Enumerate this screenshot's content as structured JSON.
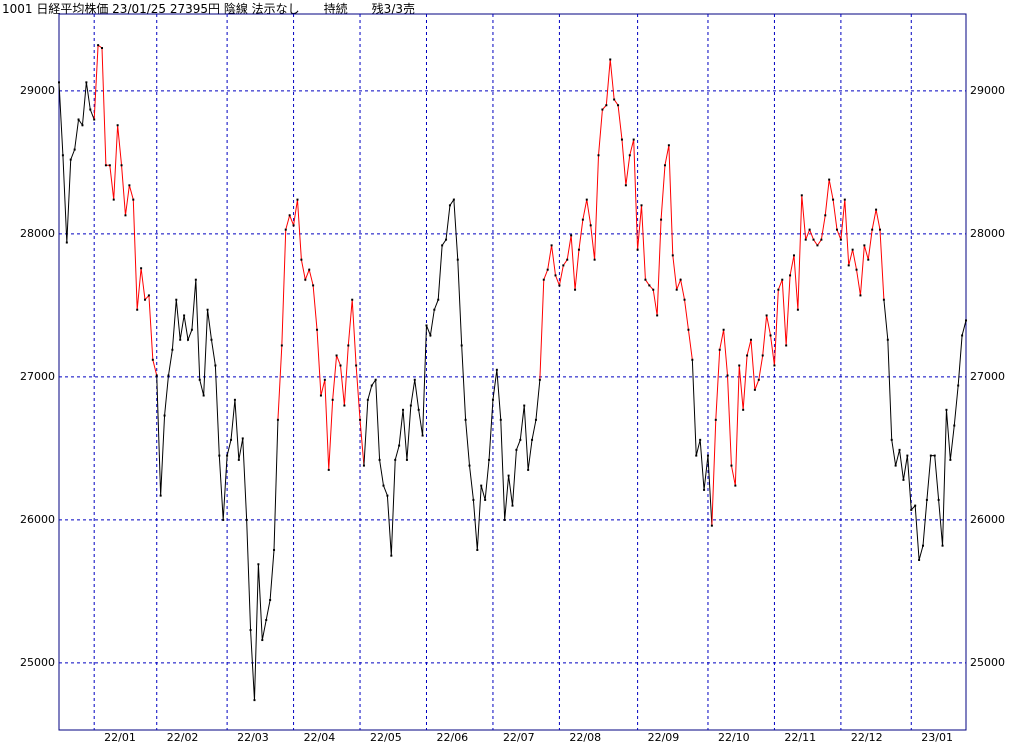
{
  "chart_data": {
    "type": "line",
    "title": "1001 日経平均株価 23/01/25 27395円 陰線 法示なし　　持続　　残3/3売",
    "categories": [
      null,
      null,
      null,
      null,
      null,
      null,
      null,
      null,
      null,
      "22/01",
      null,
      null,
      null,
      null,
      null,
      null,
      null,
      null,
      null,
      null,
      null,
      null,
      null,
      null,
      null,
      "22/02",
      null,
      null,
      null,
      null,
      null,
      null,
      null,
      null,
      null,
      null,
      null,
      null,
      null,
      null,
      null,
      null,
      null,
      "22/03",
      null,
      null,
      null,
      null,
      null,
      null,
      null,
      null,
      null,
      null,
      null,
      null,
      null,
      null,
      null,
      null,
      "22/04",
      null,
      null,
      null,
      null,
      null,
      null,
      null,
      null,
      null,
      null,
      null,
      null,
      null,
      null,
      null,
      null,
      "22/05",
      null,
      null,
      null,
      null,
      null,
      null,
      null,
      null,
      null,
      null,
      null,
      null,
      null,
      null,
      null,
      null,
      "22/06",
      null,
      null,
      null,
      null,
      null,
      null,
      null,
      null,
      null,
      null,
      null,
      null,
      null,
      null,
      null,
      null,
      "22/07",
      null,
      null,
      null,
      null,
      null,
      null,
      null,
      null,
      null,
      null,
      null,
      null,
      null,
      null,
      null,
      null,
      "22/08",
      null,
      null,
      null,
      null,
      null,
      null,
      null,
      null,
      null,
      null,
      null,
      null,
      null,
      null,
      null,
      null,
      null,
      null,
      null,
      "22/09",
      null,
      null,
      null,
      null,
      null,
      null,
      null,
      null,
      null,
      null,
      null,
      null,
      null,
      null,
      null,
      null,
      null,
      "22/10",
      null,
      null,
      null,
      null,
      null,
      null,
      null,
      null,
      null,
      null,
      null,
      null,
      null,
      null,
      null,
      null,
      "22/11",
      null,
      null,
      null,
      null,
      null,
      null,
      null,
      null,
      null,
      null,
      null,
      null,
      null,
      null,
      null,
      null,
      "22/12",
      null,
      null,
      null,
      null,
      null,
      null,
      null,
      null,
      null,
      null,
      null,
      null,
      null,
      null,
      null,
      null,
      null,
      "23/01",
      null,
      null,
      null,
      null,
      null,
      null,
      null,
      null,
      null,
      null,
      null,
      null,
      null,
      null
    ],
    "values": [
      29060,
      28550,
      27940,
      28520,
      28590,
      28800,
      28760,
      29060,
      28870,
      28800,
      29320,
      29300,
      28480,
      28480,
      28240,
      28760,
      28480,
      28130,
      28340,
      28240,
      27470,
      27760,
      27540,
      27570,
      27120,
      27010,
      26170,
      26730,
      27010,
      27190,
      27540,
      27260,
      27430,
      27260,
      27330,
      27680,
      26980,
      26870,
      27470,
      27260,
      27080,
      26450,
      26000,
      26450,
      26560,
      26840,
      26420,
      26570,
      26000,
      25230,
      24740,
      25690,
      25160,
      25300,
      25440,
      25790,
      26700,
      27220,
      28030,
      28130,
      28060,
      28240,
      27820,
      27680,
      27750,
      27640,
      27330,
      26870,
      26980,
      26350,
      26840,
      27150,
      27080,
      26800,
      27220,
      27540,
      27080,
      26700,
      26380,
      26840,
      26940,
      26980,
      26420,
      26240,
      26170,
      25750,
      26420,
      26520,
      26770,
      26420,
      26800,
      26980,
      26770,
      26590,
      27360,
      27290,
      27470,
      27540,
      27920,
      27960,
      28200,
      28240,
      27820,
      27220,
      26700,
      26380,
      26140,
      25790,
      26240,
      26140,
      26420,
      26840,
      27050,
      26700,
      26000,
      26310,
      26100,
      26490,
      26560,
      26800,
      26350,
      26560,
      26700,
      26980,
      27680,
      27750,
      27920,
      27710,
      27640,
      27780,
      27820,
      27990,
      27610,
      27890,
      28100,
      28240,
      28060,
      27820,
      28550,
      28870,
      28900,
      29220,
      28940,
      28900,
      28660,
      28340,
      28550,
      28660,
      27890,
      28200,
      27680,
      27640,
      27610,
      27430,
      28100,
      28480,
      28620,
      27850,
      27610,
      27680,
      27540,
      27330,
      27120,
      26450,
      26560,
      26210,
      26450,
      25960,
      26700,
      27190,
      27330,
      27010,
      26380,
      26240,
      27080,
      26770,
      27150,
      27260,
      26910,
      26980,
      27150,
      27430,
      27290,
      27080,
      27610,
      27680,
      27220,
      27710,
      27850,
      27470,
      28270,
      27960,
      28030,
      27960,
      27920,
      27960,
      28130,
      28380,
      28240,
      28030,
      27960,
      28240,
      27780,
      27890,
      27750,
      27570,
      27920,
      27820,
      28030,
      28170,
      28030,
      27540,
      27260,
      26560,
      26380,
      26490,
      26280,
      26450,
      26070,
      26100,
      25720,
      25820,
      26140,
      26450,
      26450,
      26140,
      25820,
      26770,
      26420,
      26660,
      26940,
      27290,
      27395
    ],
    "colors": [
      "#000",
      "#000",
      "#000",
      "#000",
      "#000",
      "#000",
      "#000",
      "#000",
      "#000",
      "#000",
      "#f00",
      "#f00",
      "#f00",
      "#f00",
      "#f00",
      "#f00",
      "#f00",
      "#f00",
      "#f00",
      "#f00",
      "#f00",
      "#f00",
      "#f00",
      "#f00",
      "#f00",
      "#f00",
      "#000",
      "#000",
      "#000",
      "#000",
      "#000",
      "#000",
      "#000",
      "#000",
      "#000",
      "#000",
      "#000",
      "#000",
      "#000",
      "#000",
      "#000",
      "#000",
      "#000",
      "#000",
      "#000",
      "#000",
      "#000",
      "#000",
      "#000",
      "#000",
      "#000",
      "#000",
      "#000",
      "#000",
      "#000",
      "#000",
      "#000",
      "#f00",
      "#f00",
      "#f00",
      "#f00",
      "#f00",
      "#f00",
      "#f00",
      "#f00",
      "#f00",
      "#f00",
      "#f00",
      "#f00",
      "#f00",
      "#f00",
      "#f00",
      "#f00",
      "#f00",
      "#f00",
      "#f00",
      "#f00",
      "#f00",
      "#f00",
      "#000",
      "#000",
      "#000",
      "#000",
      "#000",
      "#000",
      "#000",
      "#000",
      "#000",
      "#000",
      "#000",
      "#000",
      "#000",
      "#000",
      "#000",
      "#000",
      "#000",
      "#000",
      "#000",
      "#000",
      "#000",
      "#000",
      "#000",
      "#000",
      "#000",
      "#000",
      "#000",
      "#000",
      "#000",
      "#000",
      "#000",
      "#000",
      "#000",
      "#000",
      "#000",
      "#000",
      "#000",
      "#000",
      "#000",
      "#000",
      "#000",
      "#000",
      "#000",
      "#000",
      "#000",
      "#f00",
      "#f00",
      "#f00",
      "#f00",
      "#f00",
      "#f00",
      "#f00",
      "#f00",
      "#f00",
      "#f00",
      "#f00",
      "#f00",
      "#f00",
      "#f00",
      "#f00",
      "#f00",
      "#f00",
      "#f00",
      "#f00",
      "#f00",
      "#f00",
      "#f00",
      "#f00",
      "#f00",
      "#f00",
      "#f00",
      "#f00",
      "#f00",
      "#f00",
      "#f00",
      "#f00",
      "#f00",
      "#f00",
      "#f00",
      "#f00",
      "#f00",
      "#f00",
      "#f00",
      "#f00",
      "#000",
      "#000",
      "#000",
      "#000",
      "#000",
      "#f00",
      "#f00",
      "#f00",
      "#f00",
      "#f00",
      "#f00",
      "#f00",
      "#f00",
      "#f00",
      "#f00",
      "#f00",
      "#f00",
      "#f00",
      "#f00",
      "#f00",
      "#f00",
      "#f00",
      "#f00",
      "#f00",
      "#f00",
      "#f00",
      "#f00",
      "#f00",
      "#f00",
      "#f00",
      "#f00",
      "#f00",
      "#f00",
      "#f00",
      "#f00",
      "#f00",
      "#f00",
      "#f00",
      "#f00",
      "#f00",
      "#f00",
      "#f00",
      "#f00",
      "#f00",
      "#f00",
      "#f00",
      "#f00",
      "#f00",
      "#f00",
      "#000",
      "#000",
      "#000",
      "#000",
      "#000",
      "#000",
      "#000",
      "#000",
      "#000",
      "#000",
      "#000",
      "#000",
      "#000",
      "#000",
      "#000",
      "#000",
      "#000",
      "#000",
      "#000",
      "#000",
      "#000"
    ],
    "marker_color": "#000",
    "ylim": [
      24531,
      29538
    ],
    "yticks": [
      25000,
      26000,
      27000,
      28000,
      29000
    ],
    "grid": true
  }
}
